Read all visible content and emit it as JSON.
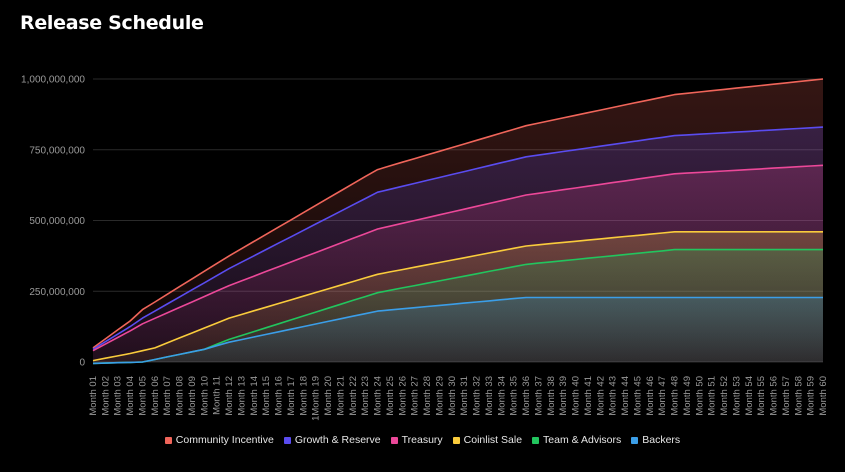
{
  "title": "Release Schedule",
  "chart_data": {
    "type": "area",
    "stacked": false,
    "title": "Release Schedule",
    "ylim": [
      0,
      1000000000
    ],
    "yticks": [
      0,
      250000000,
      500000000,
      750000000,
      1000000000
    ],
    "ytick_labels": [
      "0",
      "250,000,000",
      "500,000,000",
      "750,000,000",
      "1,000,000,000"
    ],
    "grid": true,
    "legend_position": "bottom",
    "categories": [
      "Month 01",
      "Month 02",
      "Month 03",
      "Month 04",
      "Month 05",
      "Month 06",
      "Month 07",
      "Month 08",
      "Month 09",
      "Month 10",
      "Month 11",
      "Month 12",
      "Month 13",
      "Month 14",
      "Month 15",
      "Month 16",
      "Month 17",
      "Month 18",
      "1Month 19",
      "Month 20",
      "Month 21",
      "Month 22",
      "Month 23",
      "Month 24",
      "Month 25",
      "Month 26",
      "Month 27",
      "Month 28",
      "Month 29",
      "Month 30",
      "Month 31",
      "Month 32",
      "Month 33",
      "Month 34",
      "Month 35",
      "Month 36",
      "Month 37",
      "Month 38",
      "Month 39",
      "Month 40",
      "Month 41",
      "Month 42",
      "Month 43",
      "Month 44",
      "Month 45",
      "Month 46",
      "Month 47",
      "Month 48",
      "Month 49",
      "Month 50",
      "Month 51",
      "Month 52",
      "Month 53",
      "Month 54",
      "Month 55",
      "Month 56",
      "Month 57",
      "Month 58",
      "Month 59",
      "Month 60"
    ],
    "series": [
      {
        "name": "Community Incentive",
        "color": "#f0655a",
        "anchors": [
          [
            1,
            50000000
          ],
          [
            4,
            145000000
          ],
          [
            5,
            185000000
          ],
          [
            12,
            375000000
          ],
          [
            23,
            655000000
          ],
          [
            24,
            680000000
          ],
          [
            36,
            835000000
          ],
          [
            48,
            945000000
          ],
          [
            60,
            1000000000
          ]
        ]
      },
      {
        "name": "Growth & Reserve",
        "color": "#5a4cf0",
        "anchors": [
          [
            1,
            45000000
          ],
          [
            4,
            125000000
          ],
          [
            5,
            155000000
          ],
          [
            12,
            330000000
          ],
          [
            24,
            600000000
          ],
          [
            36,
            725000000
          ],
          [
            48,
            800000000
          ],
          [
            60,
            830000000
          ]
        ]
      },
      {
        "name": "Treasury",
        "color": "#ec4899",
        "anchors": [
          [
            1,
            40000000
          ],
          [
            4,
            110000000
          ],
          [
            5,
            135000000
          ],
          [
            12,
            270000000
          ],
          [
            24,
            470000000
          ],
          [
            36,
            590000000
          ],
          [
            48,
            665000000
          ],
          [
            60,
            695000000
          ]
        ]
      },
      {
        "name": "Coinlist Sale",
        "color": "#facc3c",
        "anchors": [
          [
            1,
            5000000
          ],
          [
            4,
            30000000
          ],
          [
            6,
            50000000
          ],
          [
            12,
            155000000
          ],
          [
            24,
            310000000
          ],
          [
            36,
            410000000
          ],
          [
            48,
            460000000
          ],
          [
            60,
            460000000
          ]
        ]
      },
      {
        "name": "Team & Advisors",
        "color": "#22c55e",
        "anchors": [
          [
            1,
            -5000000
          ],
          [
            5,
            0
          ],
          [
            10,
            45000000
          ],
          [
            12,
            80000000
          ],
          [
            24,
            245000000
          ],
          [
            36,
            345000000
          ],
          [
            48,
            397000000
          ],
          [
            60,
            397000000
          ]
        ]
      },
      {
        "name": "Backers",
        "color": "#3b9ee8",
        "anchors": [
          [
            1,
            -5000000
          ],
          [
            5,
            0
          ],
          [
            10,
            45000000
          ],
          [
            12,
            70000000
          ],
          [
            24,
            180000000
          ],
          [
            36,
            228000000
          ],
          [
            60,
            228000000
          ]
        ]
      }
    ]
  }
}
